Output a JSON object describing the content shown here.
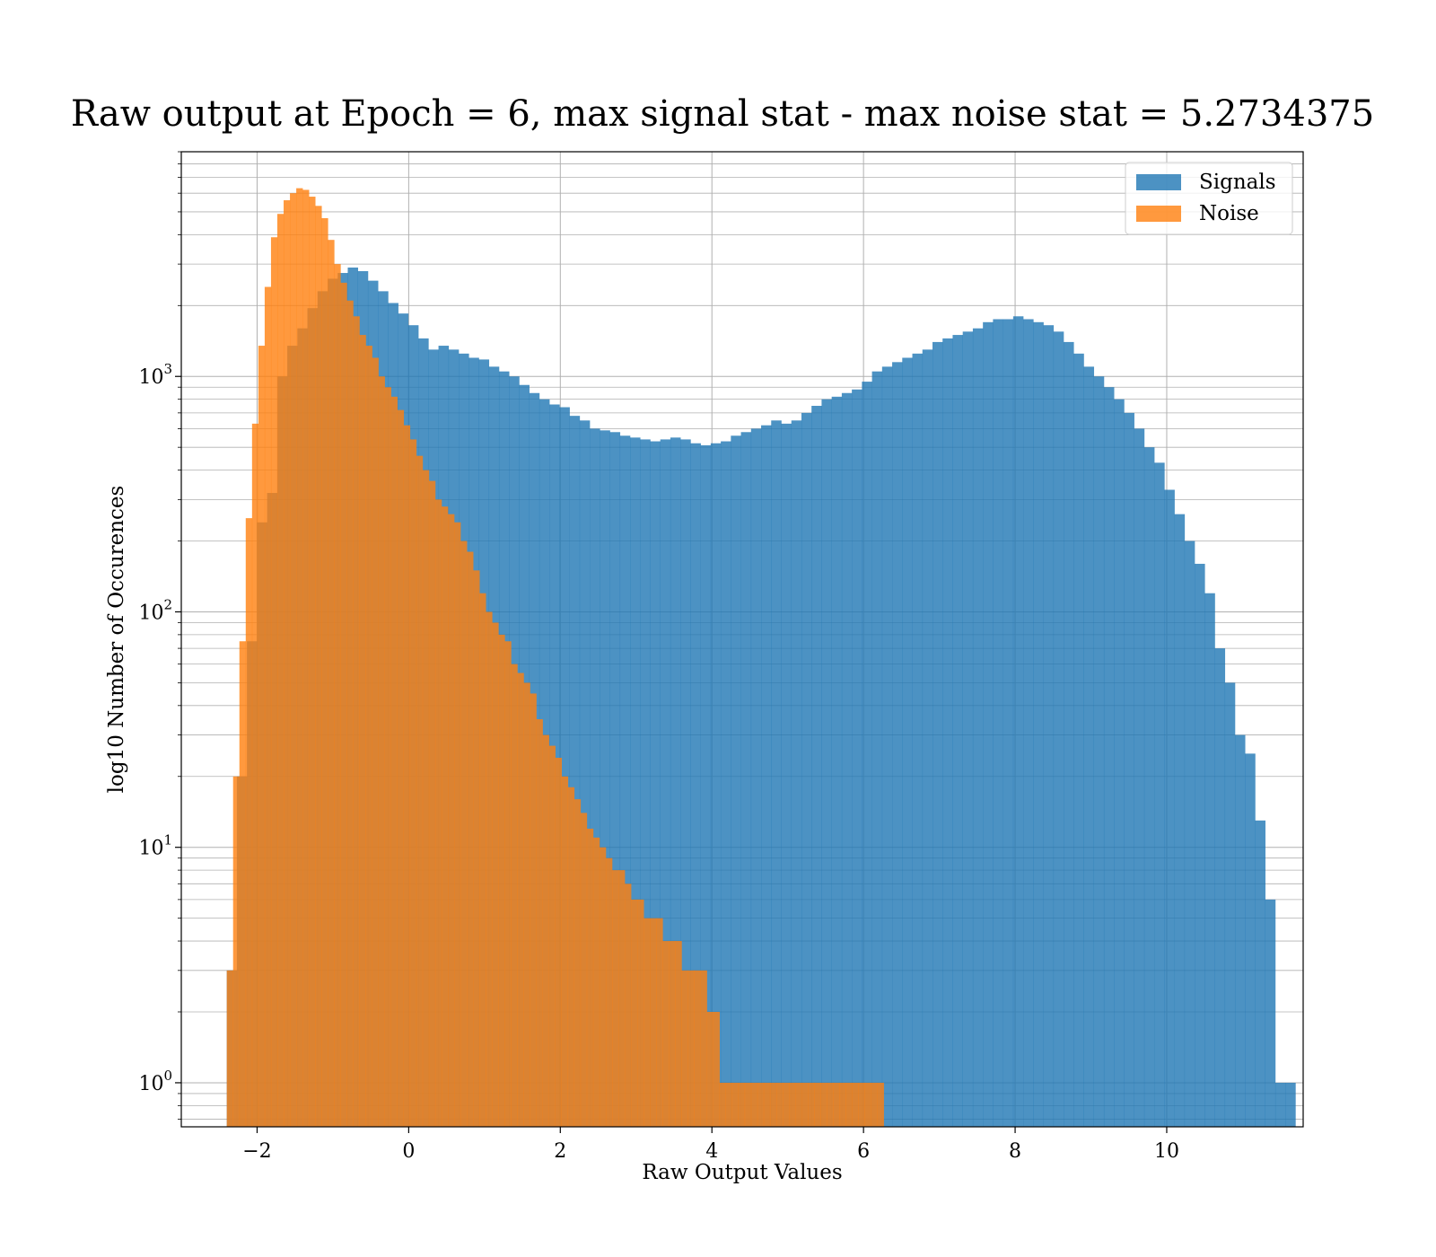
{
  "chart_data": {
    "type": "bar",
    "title": "Raw output at Epoch = 6, max signal stat - max noise stat = 5.2734375",
    "xlabel": "Raw Output Values",
    "ylabel": "log10 Number of Occurences",
    "xlim": [
      -3.0,
      11.8
    ],
    "ylim": [
      0.65,
      9000
    ],
    "yscale": "log",
    "grid": true,
    "legend_position": "top-right",
    "x_ticks": [
      -2,
      0,
      2,
      4,
      6,
      8,
      10
    ],
    "x_tick_labels": [
      "−2",
      "0",
      "2",
      "4",
      "6",
      "8",
      "10"
    ],
    "y_ticks": [
      {
        "value": 1,
        "base": "10",
        "exp": "0"
      },
      {
        "value": 10,
        "base": "10",
        "exp": "1"
      },
      {
        "value": 100,
        "base": "10",
        "exp": "2"
      },
      {
        "value": 1000,
        "base": "10",
        "exp": "3"
      }
    ],
    "series": [
      {
        "name": "Signals",
        "color": "#1f77b4",
        "bin_start": -2.4,
        "bin_width": 0.133,
        "values": [
          3,
          20,
          75,
          240,
          320,
          1000,
          1350,
          1600,
          1950,
          2300,
          2600,
          2750,
          2900,
          2800,
          2550,
          2300,
          2050,
          1850,
          1650,
          1450,
          1300,
          1350,
          1300,
          1250,
          1200,
          1180,
          1100,
          1050,
          1000,
          920,
          850,
          800,
          760,
          740,
          680,
          650,
          600,
          590,
          580,
          560,
          550,
          540,
          530,
          540,
          550,
          540,
          520,
          510,
          520,
          530,
          560,
          580,
          600,
          620,
          650,
          630,
          650,
          700,
          750,
          800,
          820,
          850,
          880,
          950,
          1050,
          1100,
          1150,
          1200,
          1250,
          1300,
          1400,
          1450,
          1500,
          1550,
          1600,
          1700,
          1750,
          1750,
          1800,
          1750,
          1700,
          1650,
          1550,
          1400,
          1250,
          1100,
          1000,
          900,
          800,
          700,
          600,
          500,
          430,
          330,
          260,
          200,
          160,
          120,
          70,
          50,
          30,
          25,
          13,
          6,
          1,
          1
        ]
      },
      {
        "name": "Noise",
        "color": "#ff7f0e",
        "bin_start": -2.4,
        "bin_width": 0.08333,
        "values": [
          3,
          20,
          75,
          250,
          630,
          1350,
          2400,
          3900,
          4900,
          5600,
          6000,
          6300,
          6200,
          5800,
          5300,
          4700,
          3800,
          3000,
          2500,
          2100,
          1800,
          1500,
          1350,
          1200,
          1000,
          900,
          820,
          720,
          620,
          540,
          460,
          400,
          360,
          300,
          280,
          260,
          240,
          200,
          180,
          150,
          120,
          100,
          90,
          80,
          75,
          60,
          55,
          50,
          45,
          35,
          30,
          27,
          24,
          20,
          18,
          16,
          14,
          12,
          11,
          10,
          9,
          8,
          8,
          7,
          6,
          6,
          5,
          5,
          5,
          4,
          4,
          4,
          3,
          3,
          3,
          3,
          2,
          2,
          1,
          1,
          1,
          1,
          1,
          1,
          1,
          1,
          1,
          1,
          1,
          1,
          1,
          1,
          1,
          1,
          1,
          1,
          1,
          1,
          1,
          1,
          1,
          1,
          1,
          1
        ]
      }
    ]
  }
}
